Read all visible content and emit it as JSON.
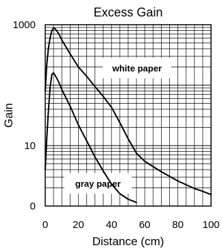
{
  "chart_data": {
    "type": "line",
    "title": "Excess Gain",
    "xlabel": "Distance (cm)",
    "ylabel": "Gain",
    "xlim": [
      0,
      100
    ],
    "ylim_log10": [
      0,
      3
    ],
    "yscale": "log",
    "x_ticks": [
      0,
      20,
      40,
      60,
      80,
      100
    ],
    "y_tick_labels": [
      {
        "value": 1,
        "label": "0"
      },
      {
        "value": 10,
        "label": "10"
      },
      {
        "value": 1000,
        "label": "1000"
      }
    ],
    "grid": true,
    "colors": {
      "line": "#000000",
      "grid": "#000000"
    },
    "series": [
      {
        "x": [
          0,
          1,
          2,
          3,
          4,
          5,
          6,
          8,
          10,
          15,
          20,
          25,
          30,
          35,
          40,
          45,
          50,
          55,
          60,
          65,
          70,
          75,
          80,
          85,
          90,
          95,
          100
        ],
        "y": [
          80,
          230,
          420,
          620,
          800,
          880,
          860,
          720,
          560,
          330,
          200,
          140,
          95,
          65,
          43,
          24,
          13,
          7.5,
          5.5,
          4.5,
          3.7,
          3.1,
          2.6,
          2.25,
          1.95,
          1.75,
          1.55
        ]
      },
      {
        "x": [
          0,
          1,
          2,
          3,
          4,
          5,
          6,
          8,
          10,
          15,
          20,
          25,
          30,
          35,
          40,
          45,
          50,
          55
        ],
        "y": [
          4,
          14,
          40,
          95,
          150,
          160,
          145,
          115,
          85,
          45,
          22,
          12,
          6.5,
          3.8,
          2.3,
          1.6,
          1.3,
          1.15
        ]
      }
    ],
    "annotations": [
      {
        "text": "white paper",
        "x": 57,
        "y": 160
      },
      {
        "text": "gray paper",
        "x": 35,
        "y": 0.45
      }
    ]
  }
}
